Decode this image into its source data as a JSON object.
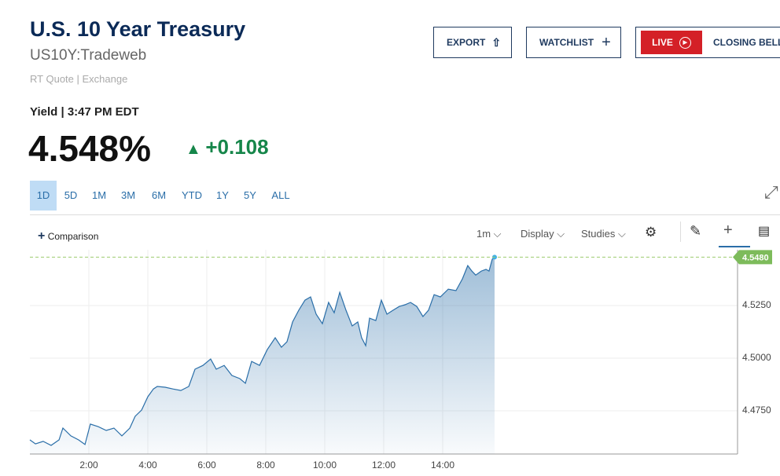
{
  "header": {
    "title": "U.S. 10 Year Treasury",
    "symbol": "US10Y:Tradeweb",
    "quote_info": "RT Quote | Exchange",
    "buttons": [
      "EXPORT",
      "WATCHLIST",
      "LIVE",
      "CLOSING BELL"
    ],
    "yield_label": "Yield | 3:47 PM EDT",
    "price": "4.548%",
    "change": "+0.108"
  },
  "ranges": [
    "1D",
    "5D",
    "1M",
    "3M",
    "6M",
    "YTD",
    "1Y",
    "5Y",
    "ALL"
  ],
  "toolbar": {
    "comparison": "Comparison",
    "interval": "1m",
    "display": "Display",
    "studies": "Studies"
  },
  "chart_data": {
    "type": "line",
    "color": "#2a6ea8",
    "grid": true,
    "x": [
      0,
      0.19,
      0.45,
      0.72,
      0.99,
      1.12,
      1.39,
      1.65,
      1.87,
      2.05,
      2.32,
      2.59,
      2.85,
      3.12,
      3.39,
      3.57,
      3.79,
      4.0,
      4.19,
      4.32,
      4.59,
      4.85,
      5.12,
      5.39,
      5.6,
      5.87,
      6.13,
      6.32,
      6.59,
      6.85,
      7.12,
      7.31,
      7.52,
      7.79,
      8.05,
      8.32,
      8.53,
      8.72,
      8.91,
      9.12,
      9.33,
      9.52,
      9.71,
      9.92,
      10.13,
      10.32,
      10.51,
      10.72,
      10.93,
      11.12,
      11.25,
      11.39,
      11.52,
      11.73,
      11.92,
      12.11,
      12.32,
      12.53,
      12.72,
      12.91,
      13.12,
      13.33,
      13.52,
      13.71,
      13.92,
      14.19,
      14.45,
      14.67,
      14.85,
      14.99,
      15.12,
      15.31,
      15.47,
      15.57,
      15.68,
      15.76
    ],
    "values": [
      4.4612,
      4.4593,
      4.4605,
      4.4586,
      4.4612,
      4.4668,
      4.4631,
      4.4612,
      4.459,
      4.4687,
      4.4675,
      4.4657,
      4.4668,
      4.4631,
      4.4668,
      4.4724,
      4.4754,
      4.4817,
      4.4854,
      4.4866,
      4.4862,
      4.4854,
      4.4847,
      4.4866,
      4.4948,
      4.4966,
      4.4996,
      4.4948,
      4.4966,
      4.4918,
      4.4903,
      4.4881,
      4.4985,
      4.4966,
      4.5041,
      4.5097,
      4.5052,
      4.5078,
      4.5172,
      4.5228,
      4.5276,
      4.5291,
      4.5209,
      4.5164,
      4.5265,
      4.5216,
      4.5313,
      4.5228,
      4.5153,
      4.5172,
      4.5097,
      4.506,
      4.519,
      4.5179,
      4.5276,
      4.5209,
      4.5228,
      4.5246,
      4.5254,
      4.5265,
      4.5246,
      4.5198,
      4.5228,
      4.5302,
      4.5291,
      4.5328,
      4.5321,
      4.5377,
      4.544,
      4.5414,
      4.5395,
      4.5414,
      4.5422,
      4.5414,
      4.547,
      4.548
    ],
    "xlim": [
      0,
      24
    ],
    "ylim": [
      4.4545,
      4.5515
    ],
    "xticks": [
      {
        "value": 2,
        "label": "2:00"
      },
      {
        "value": 4,
        "label": "4:00"
      },
      {
        "value": 6,
        "label": "6:00"
      },
      {
        "value": 8,
        "label": "8:00"
      },
      {
        "value": 10,
        "label": "10:00"
      },
      {
        "value": 12,
        "label": "12:00"
      },
      {
        "value": 14,
        "label": "14:00"
      }
    ],
    "yticks": [
      {
        "value": 4.475,
        "label": "4.4750"
      },
      {
        "value": 4.5,
        "label": "4.5000"
      },
      {
        "value": 4.525,
        "label": "4.5250"
      }
    ],
    "price_line": {
      "value": 4.548,
      "label": "4.5480"
    }
  }
}
